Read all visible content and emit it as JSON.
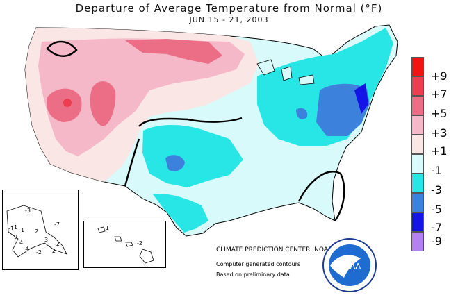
{
  "header": {
    "title": "Departure of Average Temperature from Normal (°F)",
    "subtitle": "JUN 15 - 21, 2003"
  },
  "legend": {
    "items": [
      {
        "label": "+9",
        "color": "#f01414"
      },
      {
        "label": "+7",
        "color": "#ee3c50"
      },
      {
        "label": "+5",
        "color": "#ec6e86"
      },
      {
        "label": "+3",
        "color": "#f4b8c8"
      },
      {
        "label": "+1",
        "color": "#fbe6e6"
      },
      {
        "label": "-1",
        "color": "#d8fafa"
      },
      {
        "label": "-3",
        "color": "#28e6e6"
      },
      {
        "label": "-5",
        "color": "#3c82dc"
      },
      {
        "label": "-7",
        "color": "#1414e6"
      },
      {
        "label": "-9",
        "color": "#b482f0"
      }
    ]
  },
  "credits": {
    "center": "CLIMATE PREDICTION CENTER, NOAA",
    "line1": "Computer generated contours",
    "line2": "Based on preliminary data"
  },
  "alaska_labels": [
    "-3",
    "1",
    "-7",
    "-1",
    "1",
    "2",
    "3",
    "-2",
    "9",
    "4",
    "3",
    "-2",
    "-2"
  ],
  "hawaii_labels": [
    "-1",
    "-2"
  ],
  "logo": {
    "text": "NOAA"
  }
}
